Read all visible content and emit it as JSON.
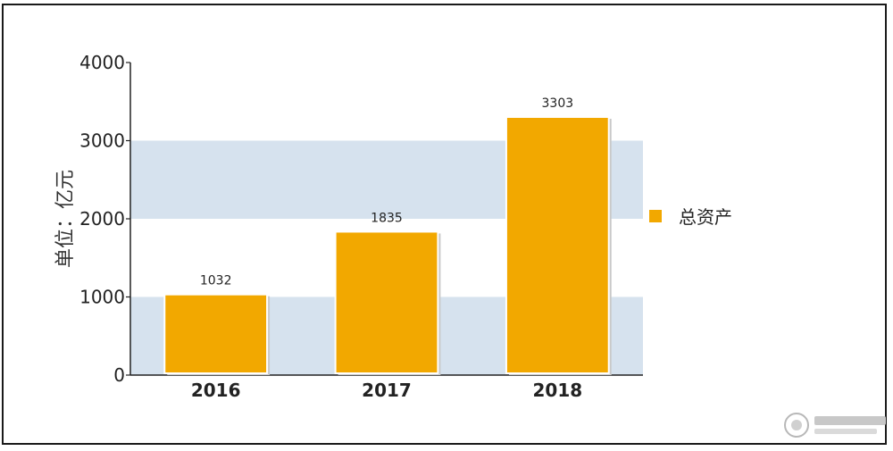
{
  "chart_data": {
    "type": "bar",
    "categories": [
      "2016",
      "2017",
      "2018"
    ],
    "series": [
      {
        "name": "总资产",
        "values": [
          1032,
          1835,
          3303
        ],
        "color": "#F2A800"
      }
    ],
    "ylabel": "单位：亿元",
    "xlabel": "",
    "ylim": [
      0,
      4000
    ],
    "yticks": [
      0,
      1000,
      2000,
      3000,
      4000
    ],
    "grid": "alternating bands",
    "band_color": "#D6E2EE",
    "legend": {
      "position": "right"
    }
  }
}
